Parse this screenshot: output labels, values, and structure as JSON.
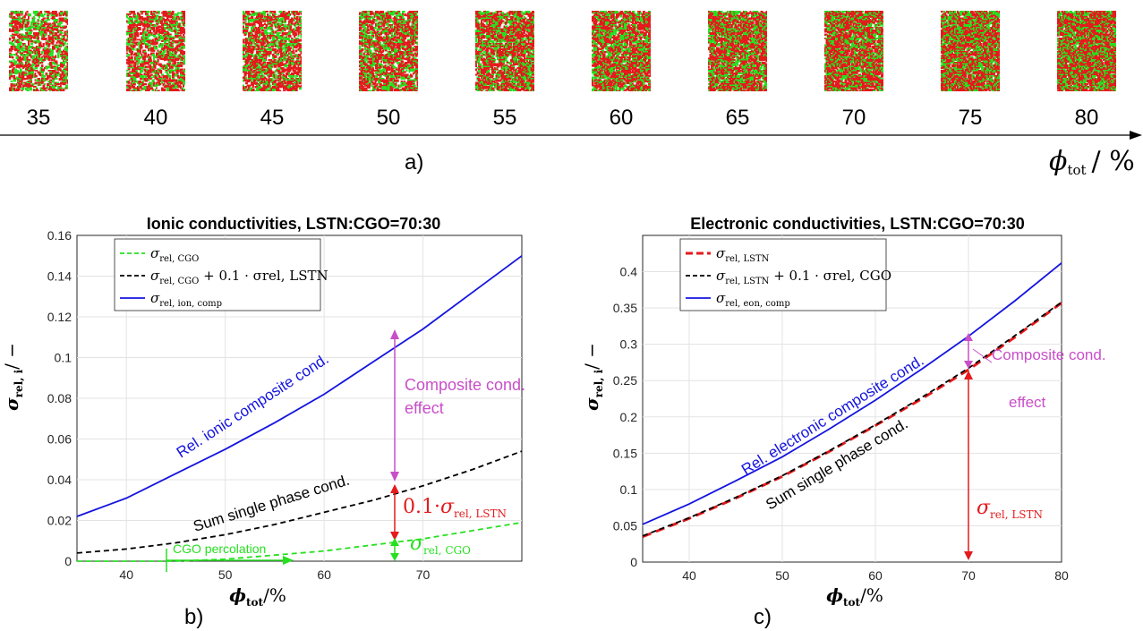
{
  "strip": {
    "labels": [
      "35",
      "40",
      "45",
      "50",
      "55",
      "60",
      "65",
      "70",
      "75",
      "80"
    ],
    "colors": [
      "#e41a1c",
      "#26e020"
    ],
    "panel_label": "a)",
    "axis_label_main": "ϕ",
    "axis_label_sub": "tot",
    "axis_label_unit": "/ %"
  },
  "chart_data": [
    {
      "type": "line",
      "panel_label": "b)",
      "title": "Ionic conductivities, LSTN:CGO=70:30",
      "xlabel_main": "ϕ",
      "xlabel_sub": "tot",
      "xlabel_unit": "/%",
      "ylabel_main": "σ",
      "ylabel_sub": "rel, i",
      "ylabel_unit": "/ −",
      "xlim": [
        35,
        80
      ],
      "ylim": [
        0,
        0.16
      ],
      "xticks": [
        "40",
        "50",
        "60",
        "70"
      ],
      "yticks": [
        "0",
        "0.02",
        "0.04",
        "0.06",
        "0.08",
        "0.1",
        "0.12",
        "0.14",
        "0.16"
      ],
      "grid": true,
      "legend": "top-left",
      "series": [
        {
          "name": "σrel, CGO",
          "name_main": "σ",
          "name_sub": "rel, CGO",
          "name_tail": "",
          "color": "#26e020",
          "dash": "dashed",
          "x": [
            35,
            40,
            45,
            50,
            55,
            60,
            65,
            70,
            75,
            80
          ],
          "y": [
            0.0,
            0.0,
            0.0,
            0.001,
            0.003,
            0.005,
            0.008,
            0.011,
            0.015,
            0.019
          ]
        },
        {
          "name": "σrel, CGO + 0.1 · σrel, LSTN",
          "name_main": "σ",
          "name_sub": "rel, CGO",
          "name_tail": " + 0.1 · σrel, LSTN",
          "color": "#000000",
          "dash": "dashed",
          "x": [
            35,
            40,
            45,
            50,
            55,
            60,
            65,
            70,
            75,
            80
          ],
          "y": [
            0.004,
            0.006,
            0.009,
            0.013,
            0.018,
            0.024,
            0.03,
            0.037,
            0.045,
            0.054
          ]
        },
        {
          "name": "σrel, ion, comp",
          "name_main": "σ",
          "name_sub": "rel, ion, comp",
          "name_tail": "",
          "color": "#1414e0",
          "dash": "solid",
          "x": [
            35,
            40,
            45,
            50,
            55,
            60,
            65,
            70,
            75,
            80
          ],
          "y": [
            0.022,
            0.031,
            0.043,
            0.055,
            0.068,
            0.082,
            0.098,
            0.114,
            0.132,
            0.15
          ]
        }
      ],
      "annotations": {
        "blue_curve": "Rel. ionic composite cond.",
        "black_curve": "Sum single phase cond.",
        "percolation": "CGO percolation",
        "effect_line1": "Composite cond.",
        "effect_line2": "effect",
        "lstn_prefix": "0.1·",
        "lstn_main": "σ",
        "lstn_sub": "rel, LSTN",
        "cgo_main": "σ",
        "cgo_sub": "rel, CGO"
      }
    },
    {
      "type": "line",
      "panel_label": "c)",
      "title": "Electronic conductivities, LSTN:CGO=70:30",
      "xlabel_main": "ϕ",
      "xlabel_sub": "tot",
      "xlabel_unit": "/%",
      "ylabel_main": "σ",
      "ylabel_sub": "rel, i",
      "ylabel_unit": "/ −",
      "xlim": [
        35,
        80
      ],
      "ylim": [
        0,
        0.45
      ],
      "xticks": [
        "40",
        "50",
        "60",
        "70",
        "80"
      ],
      "yticks": [
        "0",
        "0.05",
        "0.1",
        "0.15",
        "0.2",
        "0.25",
        "0.3",
        "0.35",
        "0.4"
      ],
      "grid": true,
      "legend": "top-left",
      "series": [
        {
          "name": "σrel, LSTN",
          "name_main": "σ",
          "name_sub": "rel, LSTN",
          "name_tail": "",
          "color": "#e41a1c",
          "dash": "dashed",
          "x": [
            35,
            40,
            45,
            50,
            55,
            60,
            65,
            70,
            75,
            80
          ],
          "y": [
            0.035,
            0.06,
            0.088,
            0.118,
            0.152,
            0.188,
            0.225,
            0.265,
            0.31,
            0.357
          ]
        },
        {
          "name": "σrel, LSTN + 0.1 · σrel, CGO",
          "name_main": "σ",
          "name_sub": "rel, LSTN",
          "name_tail": " + 0.1 · σrel, CGO",
          "color": "#000000",
          "dash": "dashed",
          "x": [
            35,
            40,
            45,
            50,
            55,
            60,
            65,
            70,
            75,
            80
          ],
          "y": [
            0.036,
            0.061,
            0.089,
            0.119,
            0.153,
            0.189,
            0.227,
            0.267,
            0.312,
            0.358
          ]
        },
        {
          "name": "σrel, eon, comp",
          "name_main": "σ",
          "name_sub": "rel, eon, comp",
          "name_tail": "",
          "color": "#1414e0",
          "dash": "solid",
          "x": [
            35,
            40,
            45,
            50,
            55,
            60,
            65,
            70,
            75,
            80
          ],
          "y": [
            0.052,
            0.08,
            0.112,
            0.145,
            0.183,
            0.223,
            0.266,
            0.311,
            0.36,
            0.412
          ]
        }
      ],
      "annotations": {
        "blue_curve": "Rel. electronic composite cond.",
        "black_curve": "Sum single phase cond.",
        "effect_line1": "Composite cond.",
        "effect_line2": "effect",
        "lstn_main": "σ",
        "lstn_sub": "rel, LSTN"
      }
    }
  ]
}
